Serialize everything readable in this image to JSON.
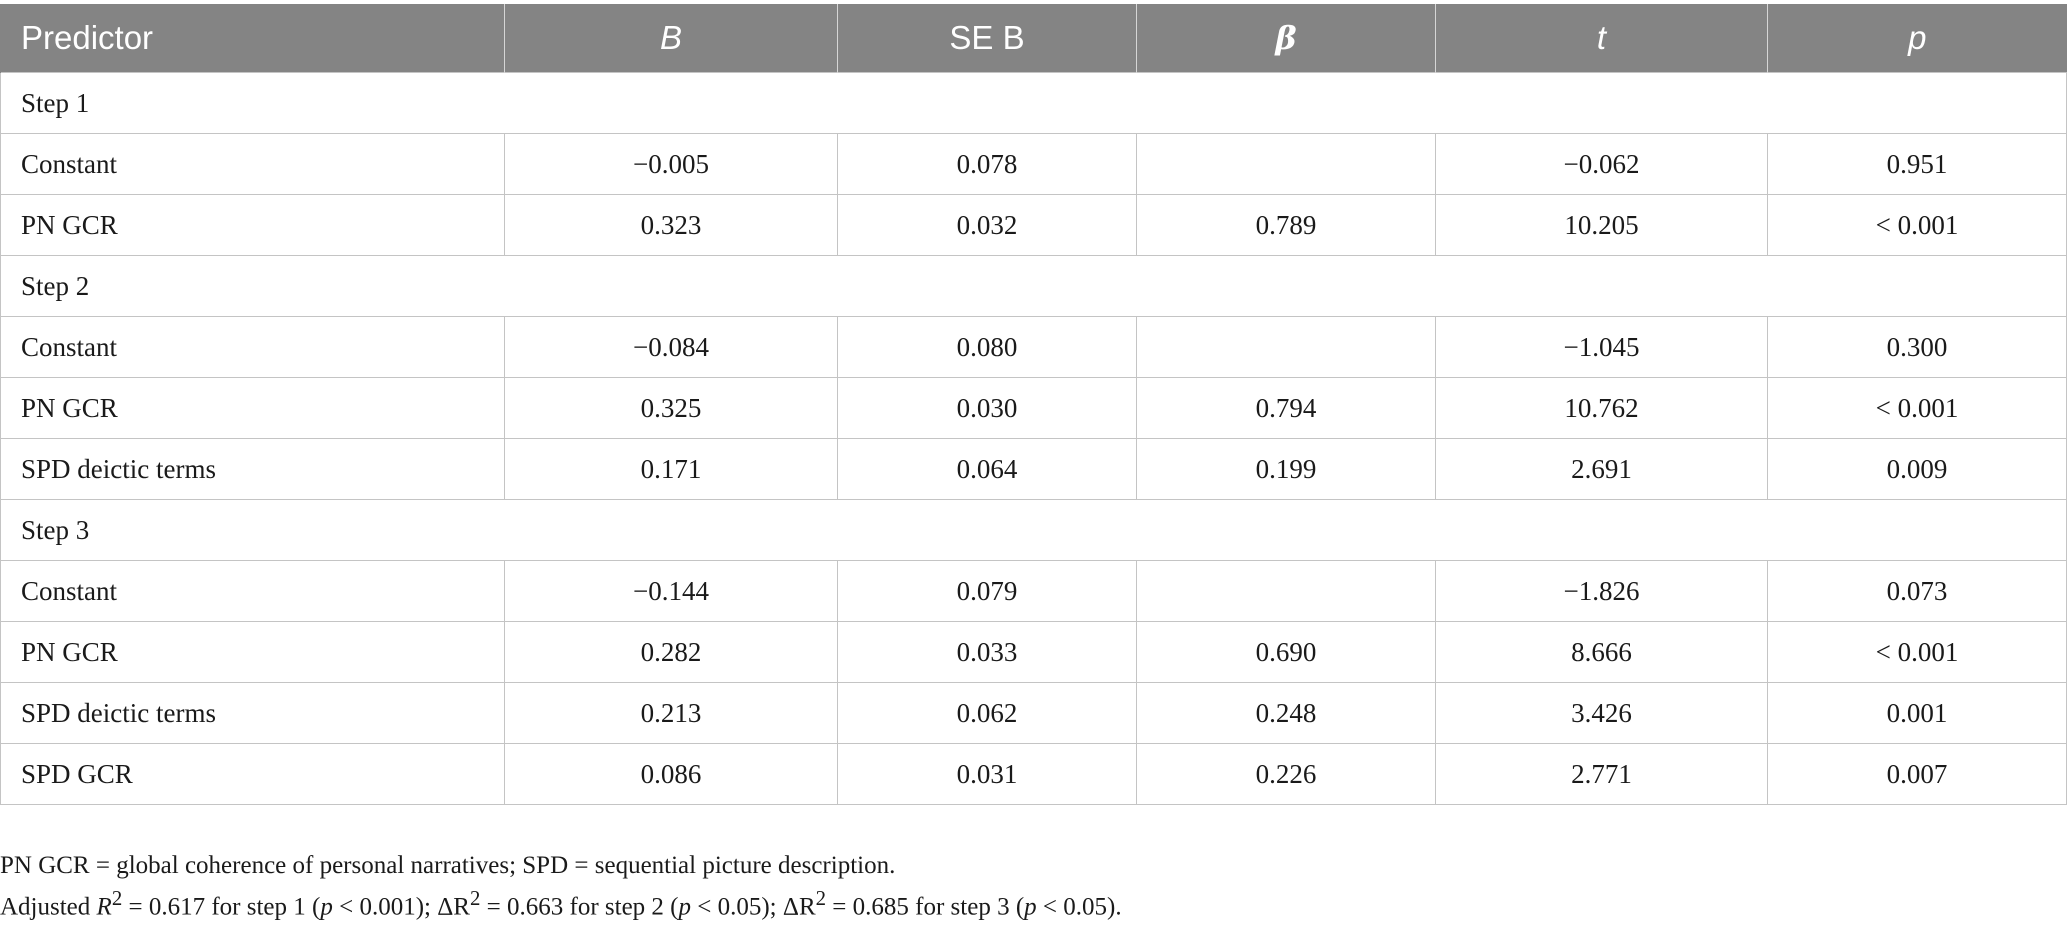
{
  "table": {
    "headers": [
      "Predictor",
      "B",
      "SE B",
      "β",
      "t",
      "p"
    ],
    "rows": [
      {
        "type": "step",
        "label": "Step 1"
      },
      {
        "type": "data",
        "cells": [
          "Constant",
          "−0.005",
          "0.078",
          "",
          "−0.062",
          "0.951"
        ]
      },
      {
        "type": "data",
        "cells": [
          "PN GCR",
          "0.323",
          "0.032",
          "0.789",
          "10.205",
          "< 0.001"
        ]
      },
      {
        "type": "step",
        "label": "Step 2"
      },
      {
        "type": "data",
        "cells": [
          "Constant",
          "−0.084",
          "0.080",
          "",
          "−1.045",
          "0.300"
        ]
      },
      {
        "type": "data",
        "cells": [
          "PN GCR",
          "0.325",
          "0.030",
          "0.794",
          "10.762",
          "< 0.001"
        ]
      },
      {
        "type": "data",
        "cells": [
          "SPD deictic terms",
          "0.171",
          "0.064",
          "0.199",
          "2.691",
          "0.009"
        ]
      },
      {
        "type": "step",
        "label": "Step 3"
      },
      {
        "type": "data",
        "cells": [
          "Constant",
          "−0.144",
          "0.079",
          "",
          "−1.826",
          "0.073"
        ]
      },
      {
        "type": "data",
        "cells": [
          "PN GCR",
          "0.282",
          "0.033",
          "0.690",
          "8.666",
          "< 0.001"
        ]
      },
      {
        "type": "data",
        "cells": [
          "SPD deictic terms",
          "0.213",
          "0.062",
          "0.248",
          "3.426",
          "0.001"
        ]
      },
      {
        "type": "data",
        "cells": [
          "SPD GCR",
          "0.086",
          "0.031",
          "0.226",
          "2.771",
          "0.007"
        ]
      }
    ]
  },
  "notes": {
    "line1": "PN GCR = global coherence of personal narratives; SPD = sequential picture description.",
    "line2": {
      "prefix": "Adjusted ",
      "r_symbol": "R",
      "sup": "2",
      "part1": " = 0.617 for step 1 (",
      "p_symbol": "p",
      "part2": " < 0.001); ΔR",
      "part3": " = 0.663 for step 2 (",
      "part4": " < 0.05); ΔR",
      "part5": " = 0.685 for step 3 (",
      "part6": " < 0.05)."
    }
  },
  "colors": {
    "header_bg": "#848484",
    "header_text": "#ffffff",
    "grid": "#c4c4c4"
  }
}
